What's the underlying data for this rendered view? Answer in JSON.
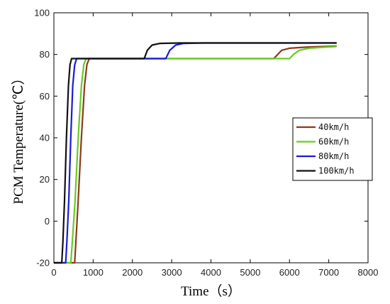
{
  "chart_data": {
    "type": "line",
    "title": "",
    "xlabel": "Time（s）",
    "ylabel": "PCM Temperature(℃）",
    "xlim": [
      0,
      8000
    ],
    "ylim": [
      -20,
      100
    ],
    "xticks": [
      "0",
      "1000",
      "2000",
      "3000",
      "4000",
      "5000",
      "6000",
      "7000",
      "8000"
    ],
    "yticks": [
      "-20",
      "0",
      "20",
      "40",
      "60",
      "80",
      "100"
    ],
    "grid": false,
    "legend_position": "right",
    "series": [
      {
        "name": "40km/h",
        "color": "#8b3a1a",
        "points": [
          [
            0,
            -20
          ],
          [
            530,
            -20
          ],
          [
            560,
            -10
          ],
          [
            620,
            10
          ],
          [
            700,
            40
          ],
          [
            780,
            65
          ],
          [
            840,
            75
          ],
          [
            900,
            78
          ],
          [
            5600,
            78
          ],
          [
            5700,
            80
          ],
          [
            5800,
            82
          ],
          [
            6000,
            83
          ],
          [
            6500,
            83.6
          ],
          [
            7200,
            84
          ]
        ]
      },
      {
        "name": "60km/h",
        "color": "#66cc22",
        "points": [
          [
            0,
            -20
          ],
          [
            430,
            -20
          ],
          [
            470,
            -10
          ],
          [
            540,
            10
          ],
          [
            620,
            40
          ],
          [
            700,
            65
          ],
          [
            760,
            75
          ],
          [
            820,
            78
          ],
          [
            6000,
            78
          ],
          [
            6100,
            80
          ],
          [
            6250,
            82
          ],
          [
            6500,
            83
          ],
          [
            6900,
            83.5
          ],
          [
            7200,
            83.8
          ]
        ]
      },
      {
        "name": "80km/h",
        "color": "#1a1adc",
        "points": [
          [
            0,
            -20
          ],
          [
            300,
            -20
          ],
          [
            330,
            -10
          ],
          [
            380,
            10
          ],
          [
            430,
            40
          ],
          [
            480,
            65
          ],
          [
            530,
            75
          ],
          [
            580,
            78
          ],
          [
            2850,
            78
          ],
          [
            2950,
            82
          ],
          [
            3100,
            84.5
          ],
          [
            3300,
            85.3
          ],
          [
            3800,
            85.5
          ],
          [
            7200,
            85.5
          ]
        ]
      },
      {
        "name": "100km/h",
        "color": "#111111",
        "points": [
          [
            0,
            -20
          ],
          [
            200,
            -20
          ],
          [
            230,
            -10
          ],
          [
            270,
            10
          ],
          [
            320,
            40
          ],
          [
            370,
            65
          ],
          [
            410,
            75
          ],
          [
            450,
            78
          ],
          [
            2300,
            78
          ],
          [
            2380,
            82
          ],
          [
            2500,
            84.5
          ],
          [
            2700,
            85.3
          ],
          [
            3200,
            85.5
          ],
          [
            7200,
            85.5
          ]
        ]
      }
    ]
  }
}
